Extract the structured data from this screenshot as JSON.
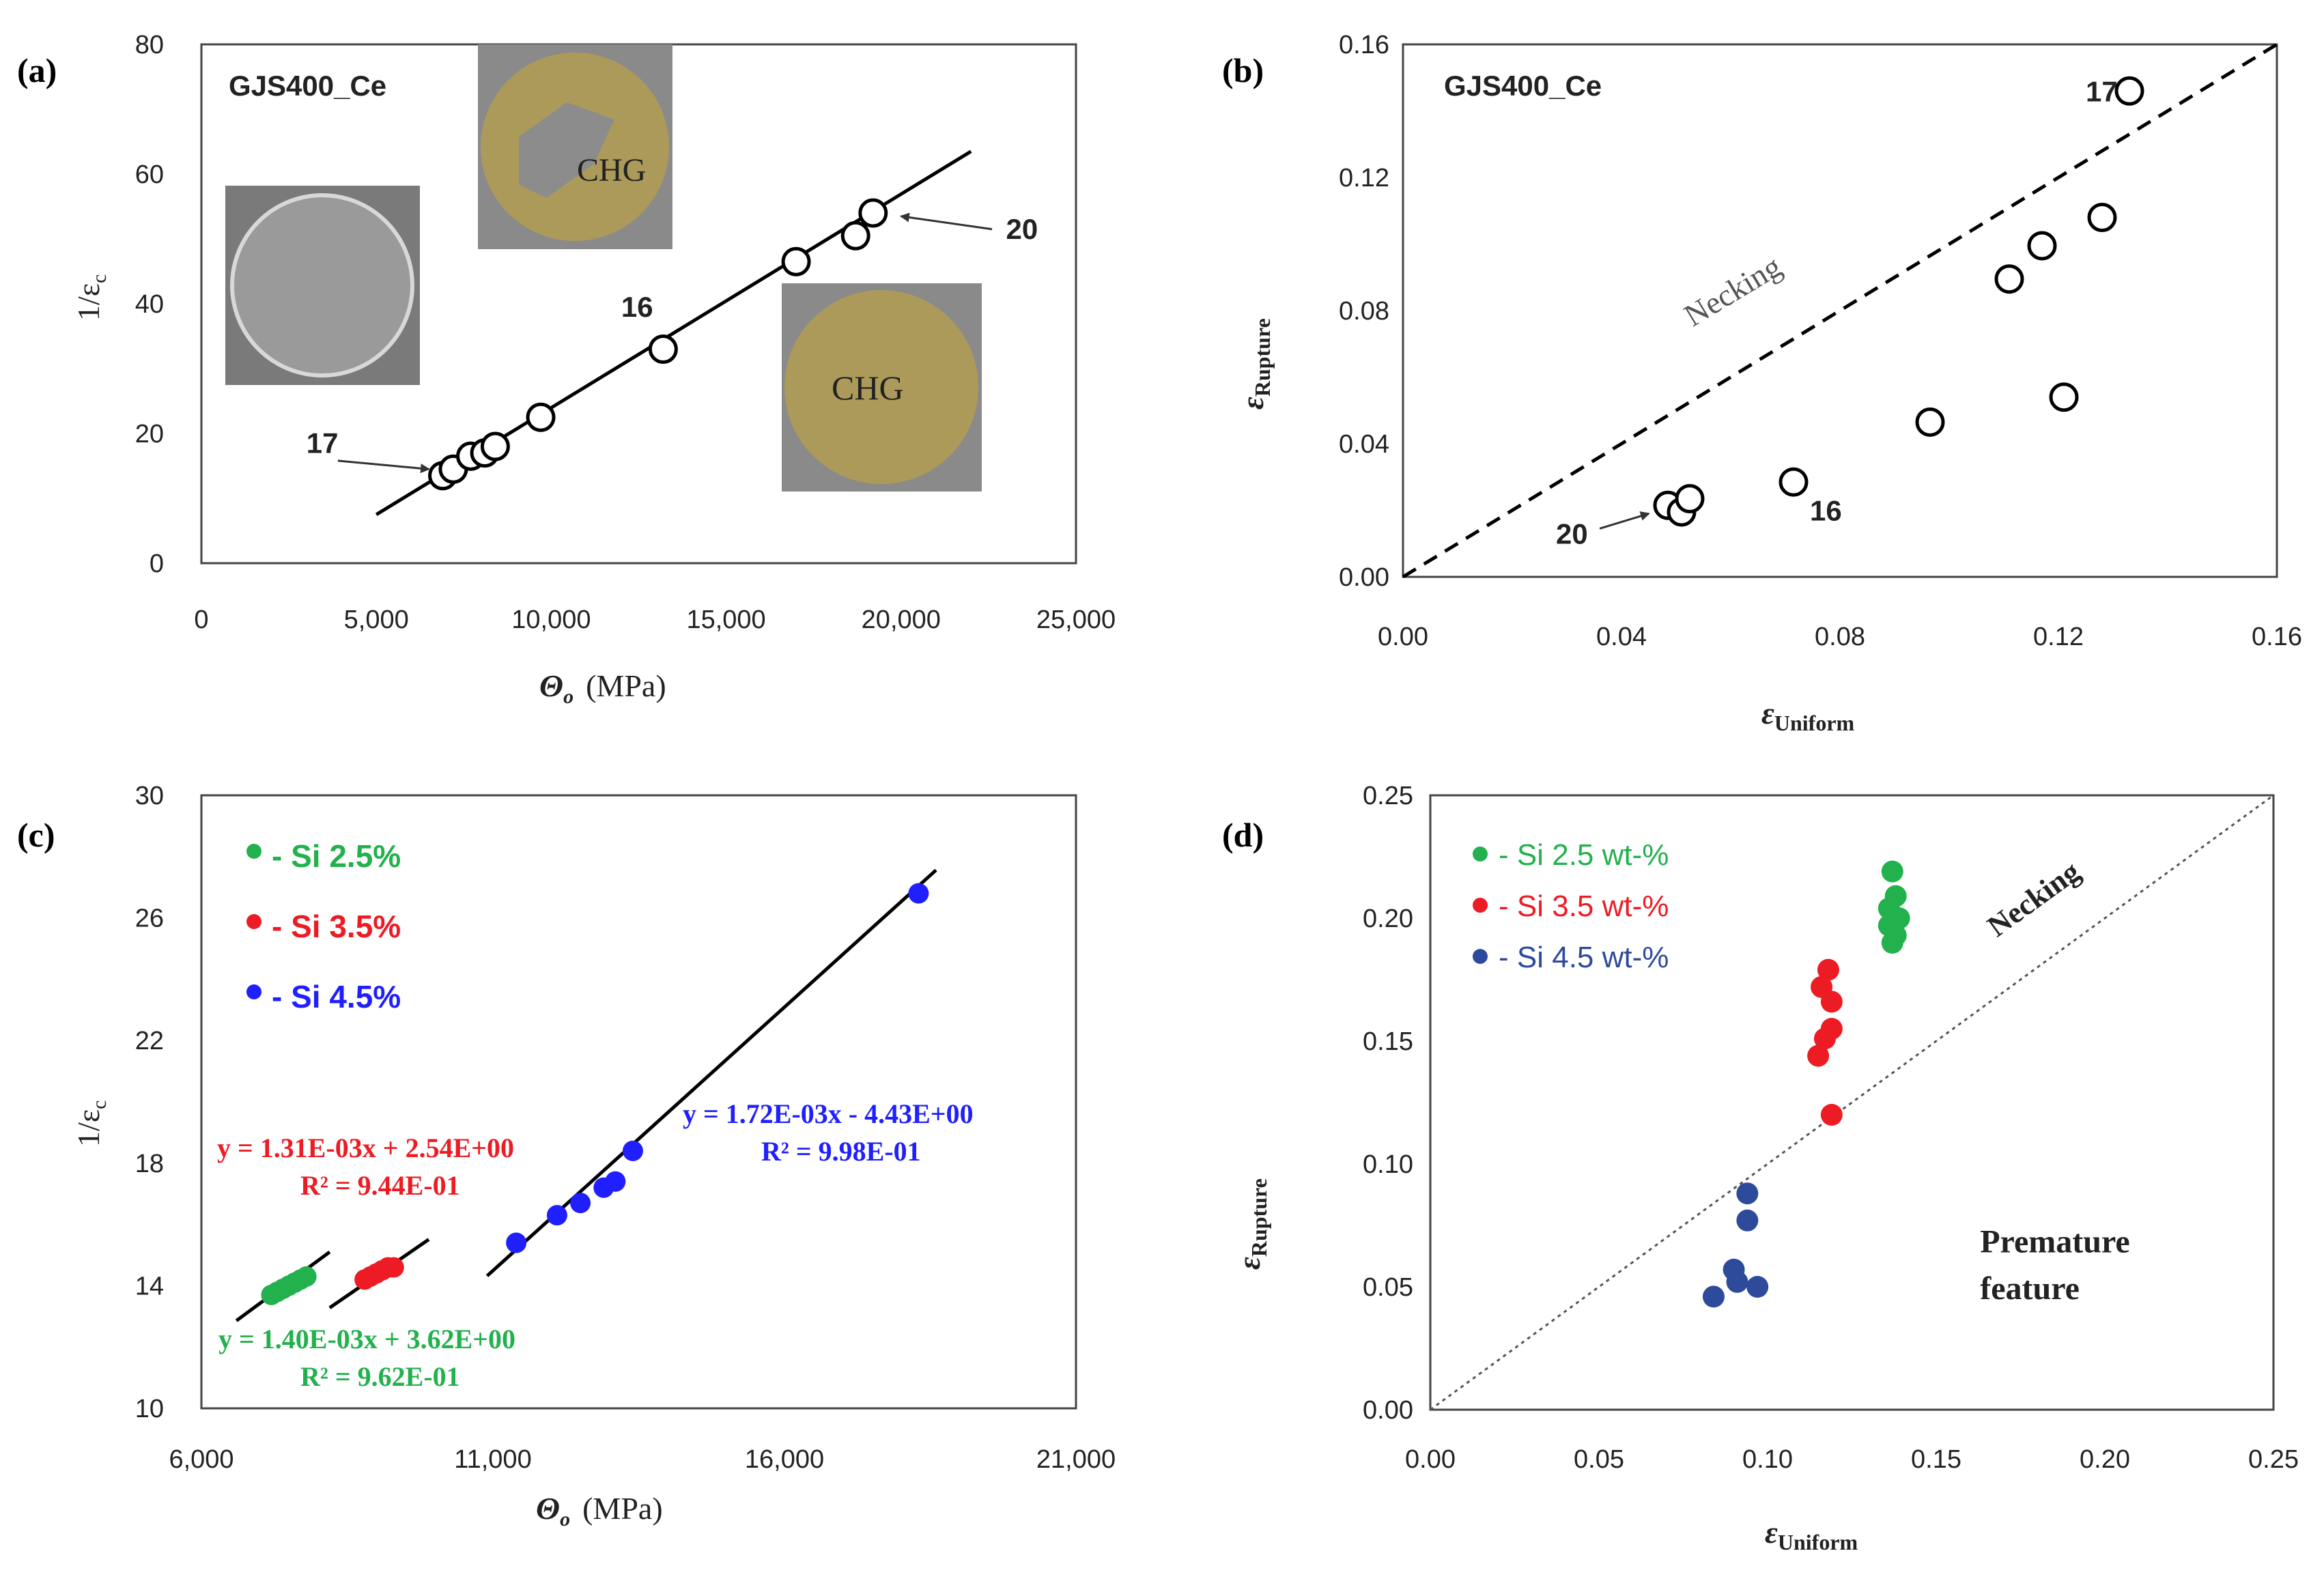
{
  "chart_data": [
    {
      "panel": "(a)",
      "type": "scatter",
      "title": "GJS400_Ce",
      "xlabel_symbol": "Θ",
      "xlabel_sub": "o",
      "xlabel_unit": "(MPa)",
      "ylabel": "1/ε",
      "ylabel_sub": "c",
      "xlim": [
        0,
        25000
      ],
      "ylim": [
        0,
        80
      ],
      "xticks": [
        0,
        5000,
        10000,
        15000,
        20000,
        25000
      ],
      "xtick_labels": [
        "0",
        "5,000",
        "10,000",
        "15,000",
        "20,000",
        "25,000"
      ],
      "yticks": [
        0,
        20,
        40,
        60,
        80
      ],
      "ytick_labels": [
        "0",
        "20",
        "40",
        "60",
        "80"
      ],
      "points": [
        {
          "x": 6900,
          "y": 13.5
        },
        {
          "x": 7200,
          "y": 14.5
        },
        {
          "x": 7700,
          "y": 16.5
        },
        {
          "x": 8100,
          "y": 17
        },
        {
          "x": 8400,
          "y": 18
        },
        {
          "x": 9700,
          "y": 22.5
        },
        {
          "x": 13200,
          "y": 33
        },
        {
          "x": 17000,
          "y": 46.5
        },
        {
          "x": 18700,
          "y": 50.5
        },
        {
          "x": 19200,
          "y": 54
        }
      ],
      "fit": {
        "x": [
          5000,
          22000
        ],
        "y": [
          7.5,
          63.5
        ]
      },
      "annotations": [
        {
          "text": "17",
          "x": 3000,
          "y": 17
        },
        {
          "text": "16",
          "x": 12000,
          "y": 38
        },
        {
          "text": "20",
          "x": 23000,
          "y": 50
        }
      ],
      "insets": [
        "",
        "CHG",
        "CHG"
      ]
    },
    {
      "panel": "(b)",
      "type": "scatter",
      "title": "GJS400_Ce",
      "xlabel": "ε",
      "xlabel_sub": "Uniform",
      "ylabel": "ε",
      "ylabel_sub": "Rupture",
      "xlim": [
        0,
        0.16
      ],
      "ylim": [
        0,
        0.16
      ],
      "ticks": [
        0,
        0.04,
        0.08,
        0.12,
        0.16
      ],
      "tick_labels": [
        "0.00",
        "0.04",
        "0.08",
        "0.12",
        "0.16"
      ],
      "points": [
        {
          "x": 0.0485,
          "y": 0.0215
        },
        {
          "x": 0.051,
          "y": 0.0195
        },
        {
          "x": 0.0525,
          "y": 0.0235
        },
        {
          "x": 0.0715,
          "y": 0.0285
        },
        {
          "x": 0.0965,
          "y": 0.0465
        },
        {
          "x": 0.111,
          "y": 0.0895
        },
        {
          "x": 0.117,
          "y": 0.0995
        },
        {
          "x": 0.128,
          "y": 0.108
        },
        {
          "x": 0.121,
          "y": 0.054
        },
        {
          "x": 0.133,
          "y": 0.146
        }
      ],
      "necking_line": {
        "x": [
          0,
          0.16
        ],
        "y": [
          0,
          0.16
        ]
      },
      "necking_label": "Necking",
      "annotations": [
        {
          "text": "17",
          "x": 0.125,
          "y": 0.146
        },
        {
          "text": "16",
          "x": 0.0745,
          "y": 0.02
        },
        {
          "text": "20",
          "x": 0.028,
          "y": 0.013
        }
      ]
    },
    {
      "panel": "(c)",
      "type": "scatter",
      "xlabel_symbol": "Θ",
      "xlabel_sub": "o",
      "xlabel_unit": "(MPa)",
      "ylabel": "1/ε",
      "ylabel_sub": "c",
      "xlim": [
        6000,
        21000
      ],
      "ylim": [
        10,
        30
      ],
      "xticks": [
        6000,
        11000,
        16000,
        21000
      ],
      "xtick_labels": [
        "6,000",
        "11,000",
        "16,000",
        "21,000"
      ],
      "yticks": [
        10,
        14,
        18,
        22,
        26,
        30
      ],
      "ytick_labels": [
        "10",
        "14",
        "18",
        "22",
        "26",
        "30"
      ],
      "series": [
        {
          "name": "- Si  2.5%",
          "color": "#22b14c",
          "points": [
            {
              "x": 7200,
              "y": 13.7
            },
            {
              "x": 7300,
              "y": 13.8
            },
            {
              "x": 7400,
              "y": 13.9
            },
            {
              "x": 7500,
              "y": 14.0
            },
            {
              "x": 7600,
              "y": 14.1
            },
            {
              "x": 7700,
              "y": 14.2
            },
            {
              "x": 7800,
              "y": 14.3
            }
          ],
          "fit": {
            "x": [
              6600,
              8200
            ],
            "y": [
              12.86,
              15.1
            ]
          },
          "equation": "y = 1.40E-03x + 3.62E+00",
          "r2": "R² = 9.62E-01"
        },
        {
          "name": "- Si  3.5%",
          "color": "#ed1c24",
          "points": [
            {
              "x": 8800,
              "y": 14.2
            },
            {
              "x": 8900,
              "y": 14.3
            },
            {
              "x": 9000,
              "y": 14.4
            },
            {
              "x": 9100,
              "y": 14.5
            },
            {
              "x": 9200,
              "y": 14.6
            },
            {
              "x": 9300,
              "y": 14.6
            }
          ],
          "fit": {
            "x": [
              8200,
              9900
            ],
            "y": [
              13.28,
              15.51
            ]
          },
          "equation": "y = 1.31E-03x + 2.54E+00",
          "r2": "R² = 9.44E-01"
        },
        {
          "name": "- Si  4.5%",
          "color": "#1f1fff",
          "points": [
            {
              "x": 11400,
              "y": 15.4
            },
            {
              "x": 12100,
              "y": 16.3
            },
            {
              "x": 12500,
              "y": 16.7
            },
            {
              "x": 12900,
              "y": 17.2
            },
            {
              "x": 13100,
              "y": 17.4
            },
            {
              "x": 13400,
              "y": 18.4
            },
            {
              "x": 18300,
              "y": 26.8
            }
          ],
          "fit": {
            "x": [
              10900,
              18600
            ],
            "y": [
              14.32,
              27.56
            ]
          },
          "equation": "y = 1.72E-03x - 4.43E+00",
          "r2": "R² = 9.98E-01"
        }
      ]
    },
    {
      "panel": "(d)",
      "type": "scatter",
      "xlabel": "ε",
      "xlabel_sub": "Uniform",
      "ylabel": "ε",
      "ylabel_sub": "Rupture",
      "xlim": [
        0,
        0.25
      ],
      "ylim": [
        0,
        0.25
      ],
      "ticks": [
        0,
        0.05,
        0.1,
        0.15,
        0.2,
        0.25
      ],
      "tick_labels": [
        "0.00",
        "0.05",
        "0.10",
        "0.15",
        "0.20",
        "0.25"
      ],
      "necking_line": {
        "x": [
          0,
          0.25
        ],
        "y": [
          0,
          0.25
        ]
      },
      "necking_label": "Necking",
      "region_label_1": "Premature",
      "region_label_2": "feature",
      "series": [
        {
          "name": "- Si 2.5 wt-%",
          "color": "#22b14c",
          "points": [
            {
              "x": 0.137,
              "y": 0.219
            },
            {
              "x": 0.138,
              "y": 0.209
            },
            {
              "x": 0.136,
              "y": 0.204
            },
            {
              "x": 0.139,
              "y": 0.2
            },
            {
              "x": 0.136,
              "y": 0.197
            },
            {
              "x": 0.137,
              "y": 0.19
            },
            {
              "x": 0.138,
              "y": 0.193
            }
          ]
        },
        {
          "name": "- Si 3.5 wt-%",
          "color": "#ed1c24",
          "points": [
            {
              "x": 0.118,
              "y": 0.179
            },
            {
              "x": 0.116,
              "y": 0.172
            },
            {
              "x": 0.119,
              "y": 0.166
            },
            {
              "x": 0.119,
              "y": 0.155
            },
            {
              "x": 0.117,
              "y": 0.151
            },
            {
              "x": 0.115,
              "y": 0.144
            },
            {
              "x": 0.119,
              "y": 0.12
            }
          ]
        },
        {
          "name": "- Si 4.5 wt-%",
          "color": "#2e4a9a",
          "points": [
            {
              "x": 0.094,
              "y": 0.088
            },
            {
              "x": 0.094,
              "y": 0.077
            },
            {
              "x": 0.09,
              "y": 0.057
            },
            {
              "x": 0.091,
              "y": 0.052
            },
            {
              "x": 0.097,
              "y": 0.05
            },
            {
              "x": 0.084,
              "y": 0.046
            }
          ]
        }
      ]
    }
  ]
}
